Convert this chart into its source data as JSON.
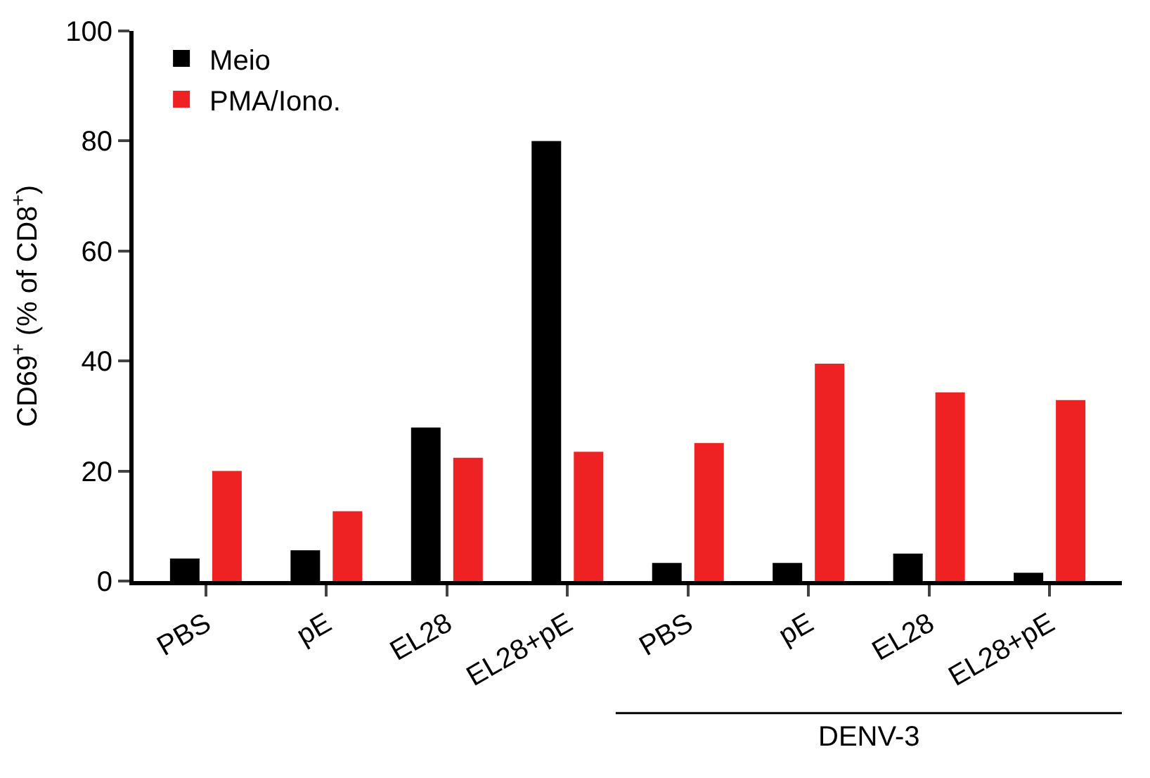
{
  "chart_data": {
    "type": "bar",
    "ylabel": "CD69$^{+}$ (% of CD8$^{+}$)",
    "categories": [
      "PBS",
      "pE",
      "EL28",
      "EL28+pE",
      "PBS",
      "pE",
      "EL28",
      "EL28+pE"
    ],
    "series": [
      {
        "name": "Meio",
        "color": "#000000",
        "values": [
          4.1,
          5.6,
          27.9,
          80,
          3.3,
          3.3,
          5,
          1.5
        ]
      },
      {
        "name": "PMA/Iono.",
        "color": "#ee2222",
        "values": [
          20,
          12.7,
          22.4,
          23.5,
          25.1,
          39.5,
          34.3,
          32.9
        ]
      }
    ],
    "ylim": [
      0,
      100
    ],
    "yticks": [
      0,
      20,
      40,
      60,
      80,
      100
    ],
    "legend": "top left",
    "annotations": [
      "DENV-3"
    ]
  }
}
